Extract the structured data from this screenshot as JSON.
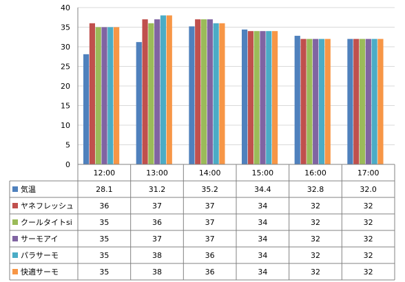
{
  "chart_data": {
    "type": "bar",
    "categories": [
      "12:00",
      "13:00",
      "14:00",
      "15:00",
      "16:00",
      "17:00"
    ],
    "ylim": [
      0,
      40
    ],
    "yticks": [
      0,
      5,
      10,
      15,
      20,
      25,
      30,
      35,
      40
    ],
    "grid": true,
    "legend": "data-table",
    "series": [
      {
        "name": "気温",
        "color": "#4f81bd",
        "values": [
          28.1,
          31.2,
          35.2,
          34.4,
          32.8,
          32.0
        ],
        "labels": [
          "28.1",
          "31.2",
          "35.2",
          "34.4",
          "32.8",
          "32.0"
        ]
      },
      {
        "name": "ヤネフレッシュ",
        "color": "#c0504d",
        "values": [
          36,
          37,
          37,
          34,
          32,
          32
        ],
        "labels": [
          "36",
          "37",
          "37",
          "34",
          "32",
          "32"
        ]
      },
      {
        "name": "クールタイトsi",
        "color": "#9bbb59",
        "values": [
          35,
          36,
          37,
          34,
          32,
          32
        ],
        "labels": [
          "35",
          "36",
          "37",
          "34",
          "32",
          "32"
        ]
      },
      {
        "name": "サーモアイ",
        "color": "#8064a2",
        "values": [
          35,
          37,
          37,
          34,
          32,
          32
        ],
        "labels": [
          "35",
          "37",
          "37",
          "34",
          "32",
          "32"
        ]
      },
      {
        "name": "パラサーモ",
        "color": "#4bacc6",
        "values": [
          35,
          38,
          36,
          34,
          32,
          32
        ],
        "labels": [
          "35",
          "38",
          "36",
          "34",
          "32",
          "32"
        ]
      },
      {
        "name": "快適サーモ",
        "color": "#f79646",
        "values": [
          35,
          38,
          36,
          34,
          32,
          32
        ],
        "labels": [
          "35",
          "38",
          "36",
          "34",
          "32",
          "32"
        ]
      }
    ]
  }
}
